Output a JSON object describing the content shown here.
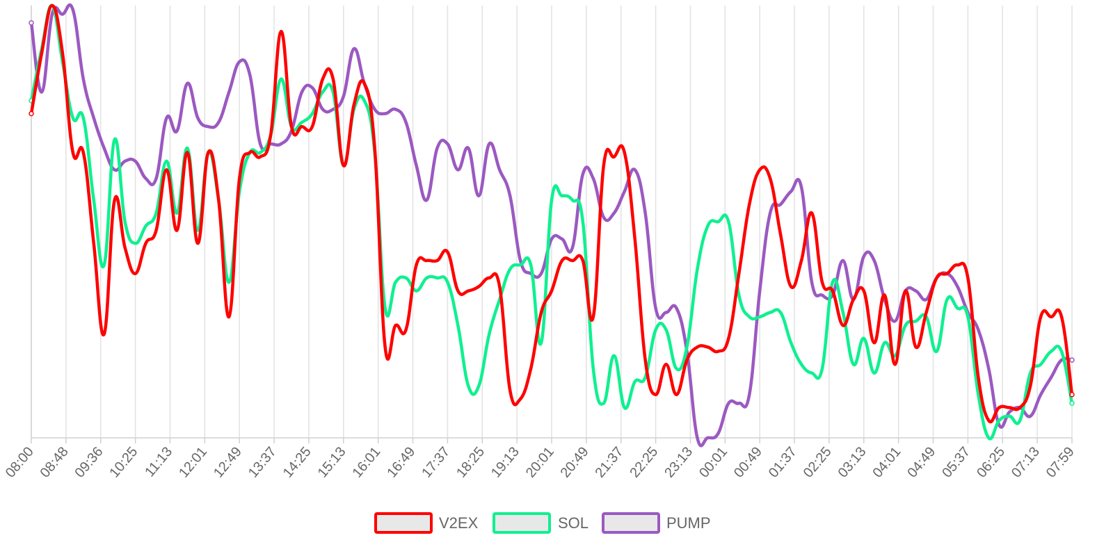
{
  "chart_data": {
    "type": "line",
    "title": "",
    "xlabel": "",
    "ylabel": "",
    "grid": "vertical",
    "legend_position": "bottom",
    "x_tick_labels": [
      "08:00",
      "08:48",
      "09:36",
      "10:25",
      "11:13",
      "12:01",
      "12:49",
      "13:37",
      "14:25",
      "15:13",
      "16:01",
      "16:49",
      "17:37",
      "18:25",
      "19:13",
      "20:01",
      "20:49",
      "21:37",
      "22:25",
      "23:13",
      "00:01",
      "00:49",
      "01:37",
      "02:25",
      "03:13",
      "04:01",
      "04:49",
      "05:37",
      "06:25",
      "07:13",
      "07:59"
    ],
    "ylim": [
      0,
      100
    ],
    "series": [
      {
        "name": "V2EX",
        "color": "#ff0000",
        "values": [
          75,
          89,
          100,
          89,
          66,
          66,
          45,
          24,
          55,
          44,
          38,
          45,
          48,
          62,
          48,
          66,
          45,
          66,
          55,
          28,
          60,
          66,
          65,
          70,
          94,
          72,
          72,
          72,
          83,
          83,
          63,
          77,
          82,
          67,
          21,
          26,
          25,
          40,
          41,
          41,
          43,
          34,
          34,
          35,
          37,
          35,
          11,
          9,
          16,
          29,
          34,
          41,
          41,
          41,
          28,
          63,
          65,
          66,
          46,
          18,
          10,
          17,
          10,
          18,
          21,
          21,
          20,
          23,
          38,
          54,
          62,
          60,
          47,
          35,
          41,
          52,
          36,
          34,
          26,
          32,
          34,
          22,
          33,
          17,
          34,
          21,
          29,
          37,
          38,
          40,
          37,
          14,
          4,
          7,
          7,
          7,
          12,
          28,
          28,
          28,
          10
        ]
      },
      {
        "name": "SOL",
        "color": "#0ff090",
        "values": [
          78,
          90,
          100,
          87,
          74,
          74,
          55,
          40,
          69,
          50,
          45,
          49,
          52,
          64,
          52,
          67,
          48,
          66,
          55,
          36,
          57,
          66,
          66,
          70,
          83,
          72,
          73,
          75,
          80,
          80,
          63,
          76,
          78,
          66,
          30,
          36,
          37,
          34,
          37,
          37,
          36,
          26,
          12,
          12,
          24,
          32,
          39,
          40,
          40,
          22,
          55,
          56,
          55,
          50,
          16,
          8,
          19,
          7,
          13,
          14,
          25,
          25,
          16,
          21,
          39,
          49,
          50,
          50,
          33,
          28,
          28,
          29,
          29,
          22,
          17,
          15,
          16,
          36,
          29,
          17,
          23,
          15,
          22,
          19,
          26,
          27,
          28,
          20,
          32,
          30,
          28,
          10,
          0,
          4,
          5,
          4,
          15,
          17,
          20,
          20,
          8
        ]
      },
      {
        "name": "PUMP",
        "color": "#9b59c1",
        "values": [
          96,
          80,
          98,
          98,
          99,
          83,
          74,
          67,
          62,
          64,
          64,
          60,
          60,
          74,
          71,
          82,
          74,
          72,
          73,
          80,
          87,
          84,
          68,
          68,
          68,
          71,
          80,
          81,
          76,
          76,
          79,
          90,
          82,
          76,
          75,
          76,
          73,
          63,
          55,
          67,
          68,
          62,
          67,
          56,
          68,
          62,
          56,
          41,
          38,
          38,
          46,
          46,
          44,
          61,
          60,
          51,
          52,
          57,
          62,
          52,
          30,
          29,
          30,
          20,
          0,
          0,
          1,
          8,
          8,
          10,
          34,
          52,
          54,
          57,
          58,
          36,
          33,
          33,
          41,
          32,
          42,
          41,
          32,
          27,
          34,
          34,
          32,
          37,
          38,
          35,
          29,
          25,
          16,
          3,
          6,
          7,
          5,
          10,
          14,
          18,
          18
        ]
      }
    ],
    "legend": [
      "V2EX",
      "SOL",
      "PUMP"
    ]
  }
}
